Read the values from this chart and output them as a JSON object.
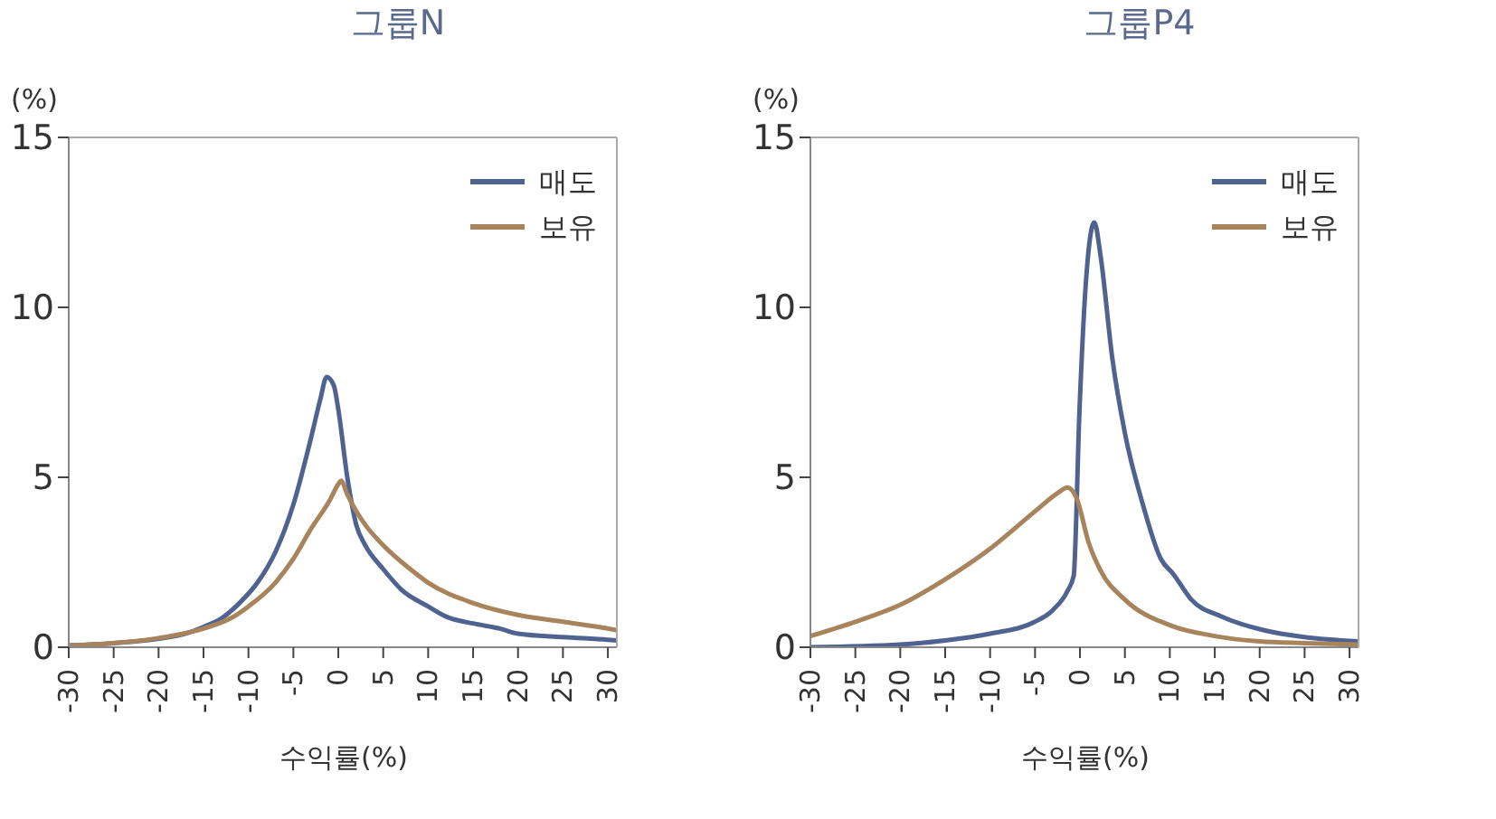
{
  "chart_data": [
    {
      "type": "line",
      "title": "그룹N",
      "ylabel": "(%)",
      "xlabel": "수익률(%)",
      "xlim": [
        -30,
        31
      ],
      "xticks": [
        -30,
        -25,
        -20,
        -15,
        -10,
        -5,
        0,
        5,
        10,
        15,
        20,
        25,
        30
      ],
      "ylim": [
        0,
        15
      ],
      "yticks": [
        0,
        5,
        10,
        15
      ],
      "legend": "top right",
      "series": [
        {
          "name": "매도",
          "color": "#4e6390",
          "x": [
            -30,
            -25,
            -20,
            -17,
            -15,
            -13,
            -11,
            -9,
            -7,
            -5,
            -3,
            -2,
            -1.3,
            -0.5,
            0,
            1,
            2,
            3,
            5,
            7,
            10,
            12,
            15,
            18,
            20,
            25,
            30,
            31
          ],
          "values": [
            0.05,
            0.12,
            0.25,
            0.4,
            0.6,
            0.85,
            1.3,
            1.9,
            2.8,
            4.2,
            6.2,
            7.3,
            7.95,
            7.7,
            7.0,
            5.0,
            3.6,
            3.0,
            2.3,
            1.7,
            1.2,
            0.9,
            0.7,
            0.55,
            0.4,
            0.3,
            0.22,
            0.2
          ]
        },
        {
          "name": "보유",
          "color": "#a7845c",
          "x": [
            -30,
            -25,
            -20,
            -15,
            -12,
            -10,
            -7,
            -5,
            -3,
            -1,
            0,
            0.3,
            1,
            2,
            3,
            5,
            8,
            10,
            15,
            20,
            25,
            30,
            31
          ],
          "values": [
            0.05,
            0.12,
            0.27,
            0.55,
            0.85,
            1.2,
            1.9,
            2.6,
            3.5,
            4.3,
            4.8,
            4.9,
            4.5,
            4.0,
            3.6,
            3.0,
            2.3,
            1.9,
            1.3,
            0.95,
            0.75,
            0.55,
            0.5
          ]
        }
      ]
    },
    {
      "type": "line",
      "title": "그룹P4",
      "ylabel": "(%)",
      "xlabel": "수익률(%)",
      "xlim": [
        -30,
        31
      ],
      "xticks": [
        -30,
        -25,
        -20,
        -15,
        -10,
        -5,
        0,
        5,
        10,
        15,
        20,
        25,
        30
      ],
      "ylim": [
        0,
        15
      ],
      "yticks": [
        0,
        5,
        10,
        15
      ],
      "legend": "top right",
      "series": [
        {
          "name": "매도",
          "color": "#4e6390",
          "x": [
            -30,
            -20,
            -15,
            -10,
            -5,
            -3,
            -1.4,
            -0.7,
            -0.05,
            0.6,
            1.6,
            2.3,
            3.6,
            5,
            7,
            9,
            10.4,
            12.4,
            15.8,
            20.5,
            25,
            31
          ],
          "values": [
            0.0,
            0.08,
            0.2,
            0.4,
            0.75,
            1.1,
            1.65,
            2.1,
            7.0,
            10.5,
            12.5,
            11.5,
            8.5,
            6.3,
            4.2,
            2.6,
            2.15,
            1.4,
            0.9,
            0.5,
            0.3,
            0.17
          ]
        },
        {
          "name": "보유",
          "color": "#a7845c",
          "x": [
            -30,
            -25,
            -20,
            -15,
            -10,
            -5,
            -2.4,
            -1.4,
            -0.4,
            1,
            2.3,
            5,
            10,
            15,
            20,
            25,
            31
          ],
          "values": [
            0.33,
            0.75,
            1.25,
            2.0,
            2.9,
            4.0,
            4.55,
            4.7,
            4.4,
            3.05,
            2.25,
            1.4,
            0.65,
            0.33,
            0.17,
            0.12,
            0.08
          ]
        }
      ]
    }
  ]
}
